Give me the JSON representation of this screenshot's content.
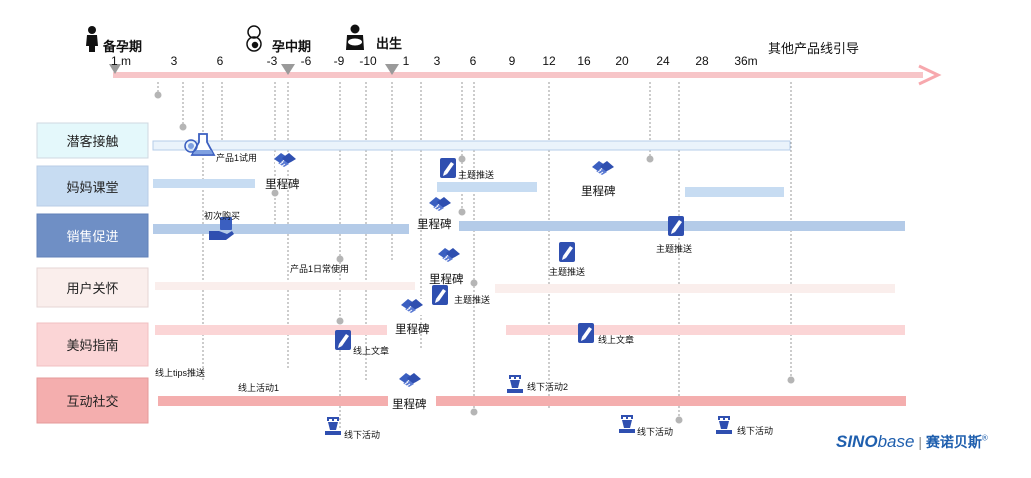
{
  "timeline": {
    "phases": {
      "pre_pregnancy": "备孕期",
      "mid_pregnancy": "孕中期",
      "birth": "出生",
      "other_lines": "其他产品线引导"
    },
    "ticks": [
      "1 m",
      "3",
      "6",
      "-3",
      "-6",
      "-9",
      "-10",
      "1",
      "3",
      "6",
      "9",
      "12",
      "16",
      "20",
      "24",
      "28",
      "36m"
    ]
  },
  "rows": {
    "r1": "潜客接触",
    "r2": "妈妈课堂",
    "r3": "销售促进",
    "r4": "用户关怀",
    "r5": "美妈指南",
    "r6": "互动社交"
  },
  "labels": {
    "product_trial": "产品1试用",
    "milestone_a": "里程碑",
    "milestone_b": "里程碑",
    "milestone_c": "里程碑",
    "milestone_d": "里程碑",
    "milestone_e": "里程碑",
    "milestone_f": "里程碑",
    "topic_push_a": "主题推送",
    "topic_push_b": "主题推送",
    "topic_push_c": "主题推送",
    "topic_push_d": "主题推送",
    "first_purchase": "初次购买",
    "daily_use": "产品1日常使用",
    "online_article_a": "线上文章",
    "online_article_b": "线上文章",
    "online_tips": "线上tips推送",
    "online_event_1": "线上活动1",
    "offline_event_2": "线下活动2",
    "offline_event_a": "线下活动",
    "offline_event_b": "线下活动",
    "offline_event_c": "线下活动"
  },
  "brand": {
    "sino": "SINO",
    "base": "base",
    "sep": " | ",
    "cn": "赛诺贝斯",
    "reg": "®"
  },
  "colors": {
    "arrow": "#f7c5c8",
    "row1": "#e4f8fb",
    "row2": "#c7dcf2",
    "row3": "#6f8fc5",
    "row4": "#faeeec",
    "row5": "#fbd5d6",
    "row6": "#f4aeae",
    "icon_blue": "#2f4fb0",
    "brand_blue": "#1f5fae"
  }
}
